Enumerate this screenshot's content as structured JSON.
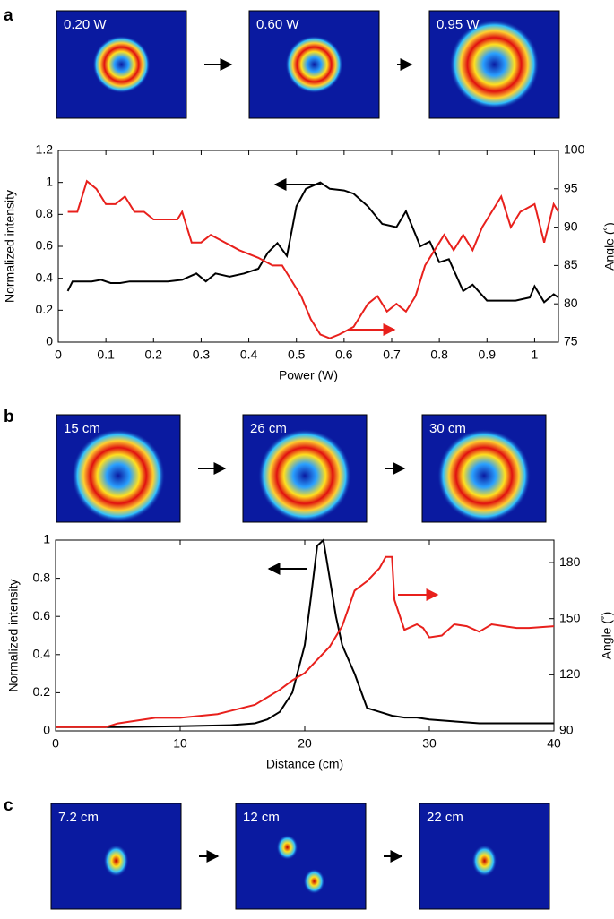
{
  "panels": [
    {
      "label": "a",
      "images": [
        "0.20 W",
        "0.60 W",
        "0.95 W"
      ]
    },
    {
      "label": "b",
      "images": [
        "15 cm",
        "26 cm",
        "30 cm"
      ]
    },
    {
      "label": "c",
      "images": [
        "7.2 cm",
        "12 cm",
        "22 cm"
      ]
    }
  ],
  "chart_data": [
    {
      "type": "line",
      "xlabel": "Power (W)",
      "ylabel": "Normalized intensity",
      "y2label": "Angle (˚)",
      "xlim": [
        0,
        1.05
      ],
      "xticks": [
        0,
        0.1,
        0.2,
        0.3,
        0.4,
        0.5,
        0.6,
        0.7,
        0.8,
        0.9,
        1
      ],
      "ylim": [
        0,
        1.2
      ],
      "yticks": [
        0,
        0.2,
        0.4,
        0.6,
        0.8,
        1,
        1.2
      ],
      "y2lim": [
        75,
        100
      ],
      "y2ticks": [
        75,
        80,
        85,
        90,
        95,
        100
      ],
      "series": [
        {
          "color": "#000000",
          "axis": "y",
          "x": [
            0.02,
            0.03,
            0.05,
            0.07,
            0.09,
            0.11,
            0.13,
            0.15,
            0.17,
            0.2,
            0.23,
            0.26,
            0.29,
            0.31,
            0.33,
            0.36,
            0.39,
            0.42,
            0.44,
            0.46,
            0.48,
            0.5,
            0.52,
            0.55,
            0.57,
            0.6,
            0.62,
            0.65,
            0.68,
            0.71,
            0.73,
            0.76,
            0.78,
            0.8,
            0.82,
            0.85,
            0.87,
            0.9,
            0.93,
            0.96,
            0.99,
            1.0,
            1.02,
            1.04,
            1.05
          ],
          "values": [
            0.32,
            0.38,
            0.38,
            0.38,
            0.39,
            0.37,
            0.37,
            0.38,
            0.38,
            0.38,
            0.38,
            0.39,
            0.43,
            0.38,
            0.43,
            0.41,
            0.43,
            0.46,
            0.56,
            0.62,
            0.54,
            0.85,
            0.96,
            1.0,
            0.96,
            0.95,
            0.93,
            0.85,
            0.74,
            0.72,
            0.82,
            0.6,
            0.63,
            0.5,
            0.52,
            0.32,
            0.36,
            0.26,
            0.26,
            0.26,
            0.28,
            0.35,
            0.25,
            0.3,
            0.28
          ]
        },
        {
          "color": "#e8201c",
          "axis": "y2",
          "x": [
            0.02,
            0.04,
            0.05,
            0.06,
            0.08,
            0.1,
            0.12,
            0.14,
            0.16,
            0.18,
            0.2,
            0.25,
            0.26,
            0.28,
            0.3,
            0.32,
            0.35,
            0.38,
            0.42,
            0.45,
            0.47,
            0.49,
            0.51,
            0.53,
            0.55,
            0.57,
            0.59,
            0.62,
            0.65,
            0.67,
            0.69,
            0.71,
            0.73,
            0.75,
            0.77,
            0.79,
            0.81,
            0.83,
            0.85,
            0.87,
            0.89,
            0.91,
            0.93,
            0.95,
            0.97,
            1.0,
            1.02,
            1.04,
            1.05
          ],
          "values": [
            92,
            92,
            94,
            96,
            95,
            93,
            93,
            94,
            92,
            92,
            91,
            91,
            92,
            88,
            88,
            89,
            88,
            87,
            86,
            85,
            85,
            83,
            81,
            78,
            76,
            75.5,
            76,
            77,
            80,
            81,
            79,
            80,
            79,
            81,
            85,
            87,
            89,
            87,
            89,
            87,
            90,
            92,
            94,
            90,
            92,
            93,
            88,
            93,
            92
          ]
        }
      ]
    },
    {
      "type": "line",
      "xlabel": "Distance (cm)",
      "ylabel": "Normalized intensity",
      "y2label": "Angle (˚)",
      "xlim": [
        0,
        40
      ],
      "xticks": [
        0,
        10,
        20,
        30,
        40
      ],
      "ylim": [
        0,
        1
      ],
      "yticks": [
        0,
        0.2,
        0.4,
        0.6,
        0.8,
        1
      ],
      "y2lim": [
        90,
        192
      ],
      "y2ticks": [
        90,
        120,
        150,
        180
      ],
      "series": [
        {
          "color": "#000000",
          "axis": "y",
          "x": [
            0,
            5,
            10,
            14,
            16,
            17,
            18,
            19,
            20,
            20.5,
            21,
            21.5,
            22,
            22.5,
            23,
            24,
            25,
            26,
            27,
            28,
            29,
            30,
            32,
            34,
            36,
            38,
            40
          ],
          "values": [
            0.02,
            0.02,
            0.025,
            0.03,
            0.04,
            0.06,
            0.1,
            0.2,
            0.45,
            0.7,
            0.97,
            1.0,
            0.8,
            0.6,
            0.45,
            0.3,
            0.12,
            0.1,
            0.08,
            0.07,
            0.07,
            0.06,
            0.05,
            0.04,
            0.04,
            0.04,
            0.04
          ]
        },
        {
          "color": "#e8201c",
          "axis": "y2",
          "x": [
            0,
            4,
            5,
            8,
            10,
            13,
            16,
            18,
            19,
            20,
            21,
            22,
            23,
            24,
            25,
            26,
            26.5,
            27,
            27.2,
            28,
            29,
            29.5,
            30,
            31,
            32,
            33,
            34,
            35,
            36,
            37,
            38,
            40
          ],
          "values": [
            92,
            92,
            94,
            97,
            97,
            99,
            104,
            112,
            117,
            121,
            128,
            135,
            146,
            165,
            170,
            177,
            183,
            183,
            160,
            144,
            147,
            145,
            140,
            141,
            147,
            146,
            143,
            147,
            146,
            145,
            145,
            146
          ]
        }
      ]
    }
  ]
}
